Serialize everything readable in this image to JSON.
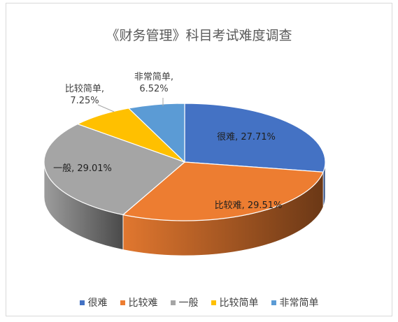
{
  "chart_data": {
    "type": "pie",
    "title": "《财务管理》科目考试难度调查",
    "slices": [
      {
        "name": "很难",
        "value": 27.71,
        "label": "27.71%",
        "color": "#4472C4"
      },
      {
        "name": "比较难",
        "value": 29.51,
        "label": "29.51%",
        "color": "#ED7D31"
      },
      {
        "name": "一般",
        "value": 29.01,
        "label": "29.01%",
        "color": "#A5A5A5"
      },
      {
        "name": "比较简单",
        "value": 7.25,
        "label": "7.25%",
        "color": "#FFC000"
      },
      {
        "name": "非常简单",
        "value": 6.52,
        "label": "6.52%",
        "color": "#5B9BD5"
      }
    ],
    "legend_position": "bottom",
    "style": "3d"
  }
}
